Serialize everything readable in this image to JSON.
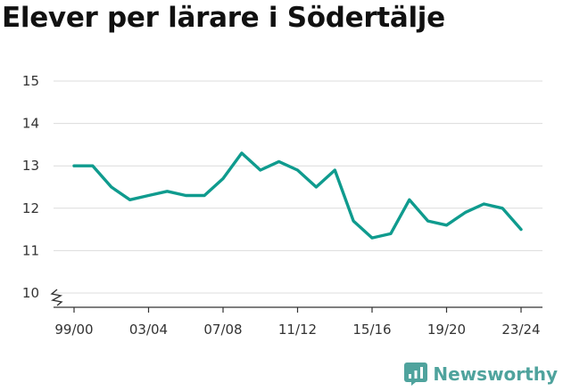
{
  "chart_data": {
    "type": "line",
    "title": "Elever per lärare i Södertälje",
    "x": [
      "99/00",
      "00/01",
      "01/02",
      "02/03",
      "03/04",
      "04/05",
      "05/06",
      "06/07",
      "07/08",
      "08/09",
      "09/10",
      "10/11",
      "11/12",
      "12/13",
      "13/14",
      "14/15",
      "15/16",
      "16/17",
      "17/18",
      "18/19",
      "19/20",
      "20/21",
      "21/22",
      "22/23",
      "23/24"
    ],
    "x_tick_labels": [
      "99/00",
      "03/04",
      "07/08",
      "11/12",
      "15/16",
      "19/20",
      "23/24"
    ],
    "series": [
      {
        "values": [
          13.0,
          13.0,
          12.5,
          12.2,
          12.3,
          12.4,
          12.3,
          12.3,
          12.7,
          13.3,
          12.9,
          13.1,
          12.9,
          12.5,
          12.9,
          11.7,
          11.3,
          11.4,
          12.2,
          11.7,
          11.6,
          11.9,
          12.1,
          12.0,
          11.5
        ]
      }
    ],
    "y_ticks": [
      10,
      11,
      12,
      13,
      14,
      15
    ],
    "ylim": [
      10,
      15
    ],
    "y_axis_break": true,
    "grid": "horizontal",
    "line_color": "#0f9b8e"
  },
  "brand": {
    "name": "Newsworthy",
    "color": "#4fa39d"
  }
}
